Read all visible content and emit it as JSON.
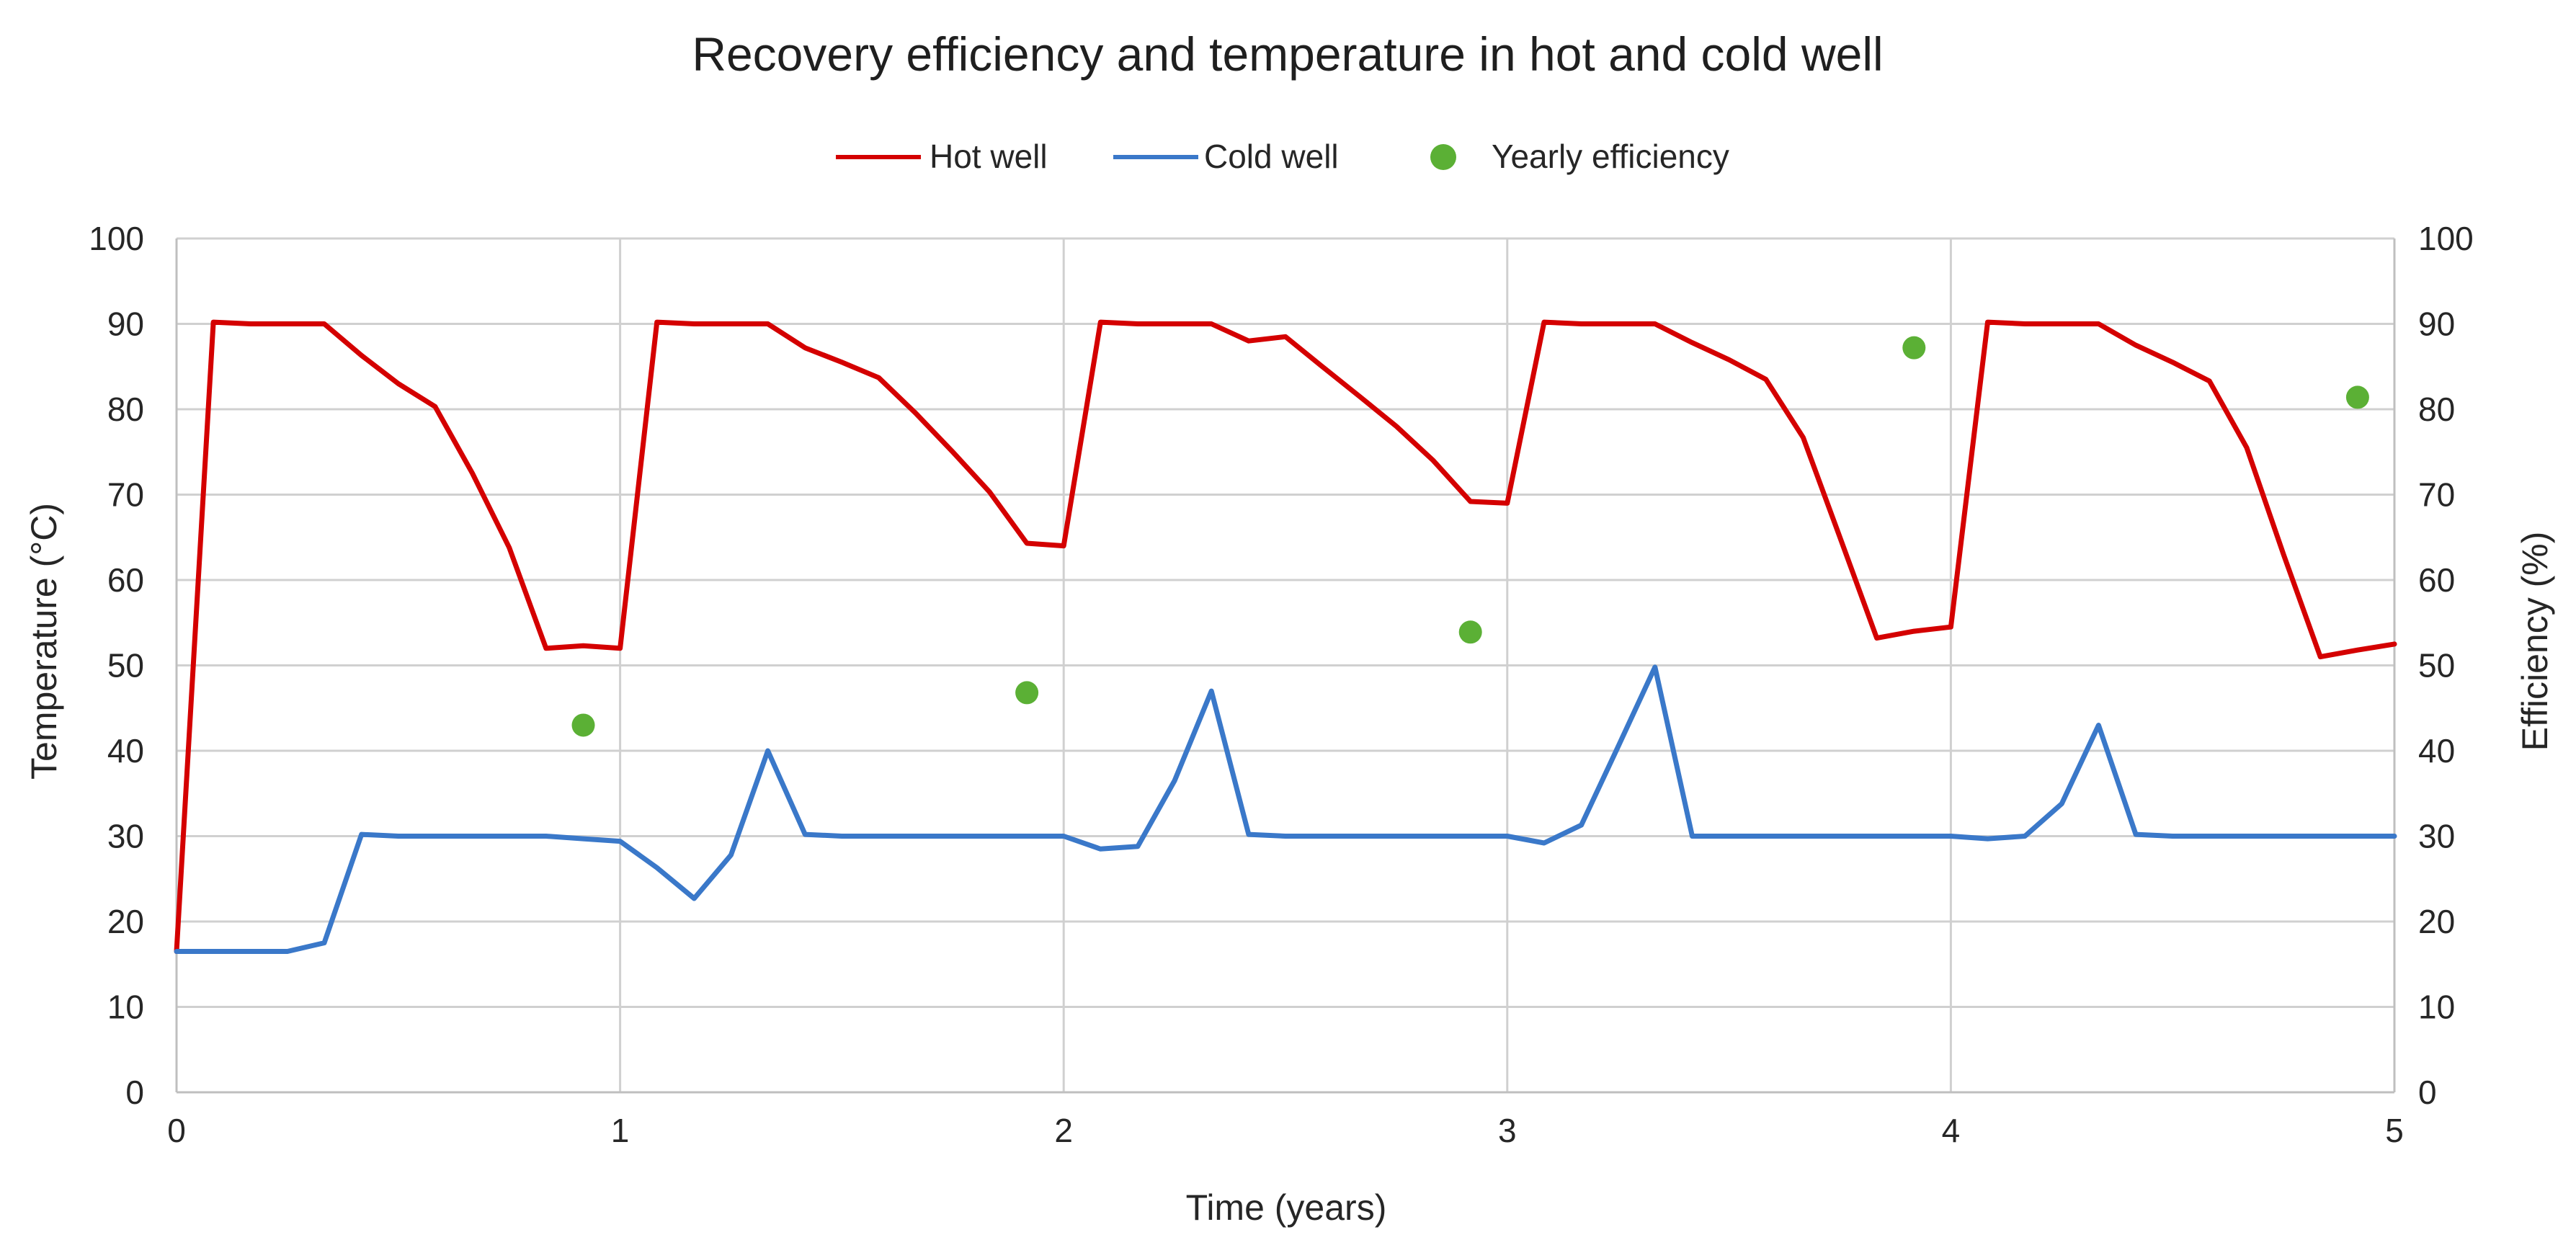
{
  "chart_data": {
    "type": "line",
    "title": "Recovery efficiency and temperature in hot and cold well",
    "xlabel": "Time (years)",
    "ylabel": "Temperature (°C)",
    "y2label": "Efficiency (%)",
    "xlim": [
      0,
      5
    ],
    "ylim": [
      0,
      100
    ],
    "y2lim": [
      0,
      100
    ],
    "xticks": [
      0,
      1,
      2,
      3,
      4,
      5
    ],
    "yticks": [
      0,
      10,
      20,
      30,
      40,
      50,
      60,
      70,
      80,
      90,
      100
    ],
    "grid": true,
    "legend_position": "top",
    "legend": [
      "Hot well",
      "Cold well",
      "Yearly efficiency"
    ],
    "colors": {
      "hot": "#d40000",
      "cold": "#3a78c9",
      "efficiency": "#5bb035",
      "grid": "#d0d0d0",
      "axis": "#bfbfbf"
    },
    "series": [
      {
        "name": "Hot well",
        "axis": "left",
        "kind": "line",
        "points": [
          [
            0,
            16.5
          ],
          [
            0.083,
            90.2
          ],
          [
            0.167,
            90
          ],
          [
            0.25,
            90
          ],
          [
            0.333,
            90
          ],
          [
            0.417,
            86.3
          ],
          [
            0.5,
            83
          ],
          [
            0.583,
            80.3
          ],
          [
            0.667,
            72.5
          ],
          [
            0.75,
            63.8
          ],
          [
            0.833,
            52
          ],
          [
            0.917,
            52.3
          ],
          [
            1,
            52
          ],
          [
            1.083,
            90.2
          ],
          [
            1.167,
            90
          ],
          [
            1.25,
            90
          ],
          [
            1.333,
            90
          ],
          [
            1.417,
            87.2
          ],
          [
            1.5,
            85.5
          ],
          [
            1.583,
            83.7
          ],
          [
            1.667,
            79.5
          ],
          [
            1.75,
            75
          ],
          [
            1.833,
            70.3
          ],
          [
            1.917,
            64.3
          ],
          [
            2,
            64
          ],
          [
            2.083,
            90.2
          ],
          [
            2.167,
            90
          ],
          [
            2.25,
            90
          ],
          [
            2.333,
            90
          ],
          [
            2.417,
            88
          ],
          [
            2.5,
            88.5
          ],
          [
            2.583,
            85
          ],
          [
            2.667,
            81.5
          ],
          [
            2.75,
            78
          ],
          [
            2.833,
            74
          ],
          [
            2.917,
            69.2
          ],
          [
            3,
            69
          ],
          [
            3.083,
            90.2
          ],
          [
            3.167,
            90
          ],
          [
            3.25,
            90
          ],
          [
            3.333,
            90
          ],
          [
            3.417,
            87.8
          ],
          [
            3.5,
            85.8
          ],
          [
            3.583,
            83.5
          ],
          [
            3.667,
            76.7
          ],
          [
            3.75,
            65
          ],
          [
            3.833,
            53.2
          ],
          [
            3.917,
            54
          ],
          [
            4,
            54.5
          ],
          [
            4.083,
            90.2
          ],
          [
            4.167,
            90
          ],
          [
            4.25,
            90
          ],
          [
            4.333,
            90
          ],
          [
            4.417,
            87.5
          ],
          [
            4.5,
            85.5
          ],
          [
            4.583,
            83.3
          ],
          [
            4.667,
            75.5
          ],
          [
            4.75,
            63
          ],
          [
            4.833,
            51
          ],
          [
            4.917,
            51.8
          ],
          [
            5,
            52.5
          ]
        ]
      },
      {
        "name": "Cold well",
        "axis": "left",
        "kind": "line",
        "points": [
          [
            0,
            16.5
          ],
          [
            0.083,
            16.5
          ],
          [
            0.167,
            16.5
          ],
          [
            0.25,
            16.5
          ],
          [
            0.333,
            17.5
          ],
          [
            0.417,
            30.2
          ],
          [
            0.5,
            30
          ],
          [
            0.583,
            30
          ],
          [
            0.667,
            30
          ],
          [
            0.75,
            30
          ],
          [
            0.833,
            30
          ],
          [
            0.917,
            29.7
          ],
          [
            1,
            29.4
          ],
          [
            1.083,
            26.3
          ],
          [
            1.167,
            22.7
          ],
          [
            1.25,
            27.8
          ],
          [
            1.333,
            40
          ],
          [
            1.417,
            30.2
          ],
          [
            1.5,
            30
          ],
          [
            1.583,
            30
          ],
          [
            1.667,
            30
          ],
          [
            1.75,
            30
          ],
          [
            1.833,
            30
          ],
          [
            1.917,
            30
          ],
          [
            2,
            30
          ],
          [
            2.083,
            28.5
          ],
          [
            2.167,
            28.8
          ],
          [
            2.25,
            36.5
          ],
          [
            2.333,
            47
          ],
          [
            2.417,
            30.2
          ],
          [
            2.5,
            30
          ],
          [
            2.583,
            30
          ],
          [
            2.667,
            30
          ],
          [
            2.75,
            30
          ],
          [
            2.833,
            30
          ],
          [
            2.917,
            30
          ],
          [
            3,
            30
          ],
          [
            3.083,
            29.2
          ],
          [
            3.167,
            31.3
          ],
          [
            3.25,
            40.5
          ],
          [
            3.333,
            49.8
          ],
          [
            3.417,
            30
          ],
          [
            3.5,
            30
          ],
          [
            3.583,
            30
          ],
          [
            3.667,
            30
          ],
          [
            3.75,
            30
          ],
          [
            3.833,
            30
          ],
          [
            3.917,
            30
          ],
          [
            4,
            30
          ],
          [
            4.083,
            29.7
          ],
          [
            4.167,
            30
          ],
          [
            4.25,
            33.8
          ],
          [
            4.333,
            43
          ],
          [
            4.417,
            30.2
          ],
          [
            4.5,
            30
          ],
          [
            4.583,
            30
          ],
          [
            4.667,
            30
          ],
          [
            4.75,
            30
          ],
          [
            4.833,
            30
          ],
          [
            4.917,
            30
          ],
          [
            5,
            30
          ]
        ]
      },
      {
        "name": "Yearly efficiency",
        "axis": "right",
        "kind": "scatter",
        "points": [
          [
            0.917,
            43
          ],
          [
            1.917,
            46.8
          ],
          [
            2.917,
            53.9
          ],
          [
            3.917,
            87.2
          ],
          [
            4.917,
            81.4
          ]
        ]
      }
    ]
  }
}
